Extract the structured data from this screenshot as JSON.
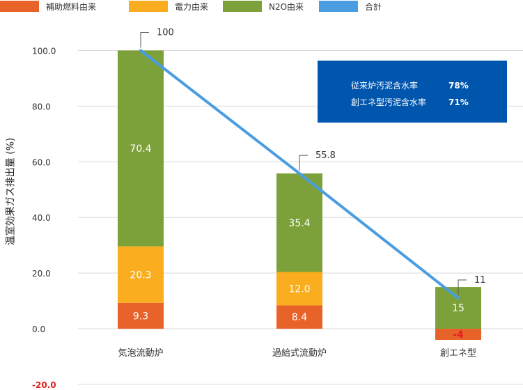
{
  "chart_data": {
    "type": "bar",
    "stacked": true,
    "categories": [
      "気泡流動炉",
      "過給式流動炉",
      "創エネ型"
    ],
    "series": [
      {
        "name": "補助燃料由来",
        "color": "#e8632a",
        "values": [
          9.3,
          8.4,
          -4
        ]
      },
      {
        "name": "電力由来",
        "color": "#f9ad1f",
        "values": [
          20.3,
          12.0,
          0
        ]
      },
      {
        "name": "N2O由来",
        "color": "#7da13a",
        "values": [
          70.4,
          35.4,
          15
        ]
      }
    ],
    "line": {
      "name": "合計",
      "color": "#4a9de0",
      "values": [
        100,
        55.8,
        11
      ]
    },
    "value_labels": [
      [
        "9.3",
        "20.3",
        "70.4"
      ],
      [
        "8.4",
        "12.0",
        "35.4"
      ],
      [
        "-4",
        "",
        "15"
      ]
    ],
    "total_labels": [
      "100",
      "55.8",
      "11"
    ],
    "y_ticks": [
      "100.0",
      "80.0",
      "60.0",
      "40.0",
      "20.0",
      "0.0",
      "-20.0"
    ],
    "ylim": [
      -20,
      100
    ],
    "ylabel": "温室効果ガス排出量 (%)",
    "legend_position": "top-left",
    "grid": true
  },
  "infobox": {
    "rows": [
      {
        "label": "従来炉汚泥含水率",
        "value": "78%"
      },
      {
        "label": "創エネ型汚泥含水率",
        "value": "71%"
      }
    ]
  }
}
